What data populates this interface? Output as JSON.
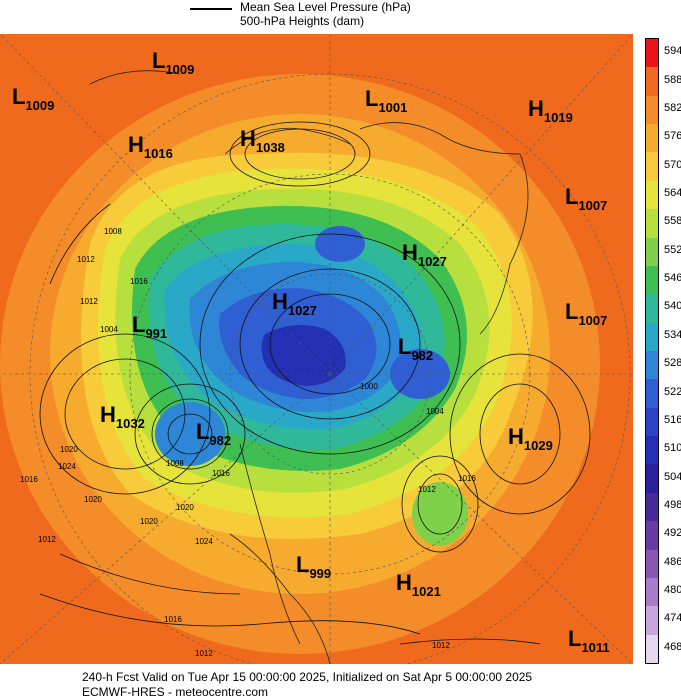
{
  "legend": {
    "mslp_label": "Mean Sea Level Pressure (hPa)",
    "height_label": "500-hPa Heights (dam)"
  },
  "colorbar": {
    "levels": [
      "594",
      "588",
      "582",
      "576",
      "570",
      "564",
      "558",
      "552",
      "546",
      "540",
      "534",
      "528",
      "522",
      "516",
      "510",
      "504",
      "498",
      "492",
      "486",
      "480",
      "474",
      "468"
    ],
    "colors": [
      "#e8161b",
      "#f06a1e",
      "#f48c2a",
      "#f6ab2f",
      "#f7cb3a",
      "#e6e33a",
      "#b7df3e",
      "#7fd14a",
      "#3fbf52",
      "#2fb89a",
      "#2aa8c8",
      "#2e86d6",
      "#2f5fd2",
      "#2d43c6",
      "#2430b4",
      "#2a1f9c",
      "#4a2a9a",
      "#6a3aa4",
      "#8a58b4",
      "#a87cc8",
      "#c8a8dc",
      "#e6d6ee"
    ]
  },
  "systems": [
    {
      "t": "L",
      "v": "1009"
    },
    {
      "t": "L",
      "v": "1009"
    },
    {
      "t": "L",
      "v": "1001"
    },
    {
      "t": "H",
      "v": "1019"
    },
    {
      "t": "H",
      "v": "1016"
    },
    {
      "t": "H",
      "v": "1038"
    },
    {
      "t": "L",
      "v": "1007"
    },
    {
      "t": "H",
      "v": "1027"
    },
    {
      "t": "H",
      "v": "1027"
    },
    {
      "t": "L",
      "v": "991"
    },
    {
      "t": "L",
      "v": "1007"
    },
    {
      "t": "L",
      "v": "982"
    },
    {
      "t": "H",
      "v": "1032"
    },
    {
      "t": "L",
      "v": "982"
    },
    {
      "t": "H",
      "v": "1029"
    },
    {
      "t": "L",
      "v": "999"
    },
    {
      "t": "H",
      "v": "1021"
    },
    {
      "t": "L",
      "v": "1011"
    }
  ],
  "isobar_labels": [
    "1008",
    "1012",
    "1016",
    "1012",
    "1004",
    "1020",
    "1020",
    "1024",
    "1016",
    "1020",
    "1020",
    "1024",
    "1016",
    "1008",
    "1016",
    "1012",
    "1016",
    "1012",
    "1012",
    "1004",
    "1000",
    "1012"
  ],
  "footer": {
    "line1": "240-h Fcst Valid on Tue Apr 15 00:00:00 2025, Initialized on Sat Apr  5 00:00:00 2025",
    "line2": "ECMWF-HRES  - meteocentre.com"
  }
}
